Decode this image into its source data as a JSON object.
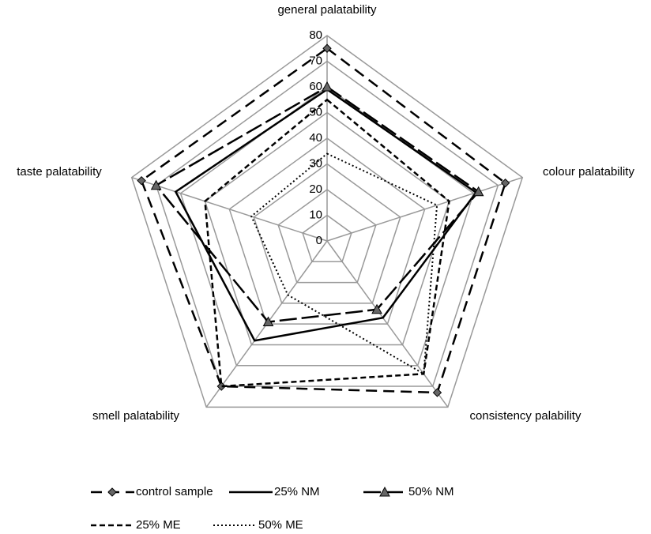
{
  "chart_data": {
    "type": "radar",
    "categories": [
      "general palatability",
      "colour palatability",
      "consistency palability",
      "smell palatability",
      "taste palatability"
    ],
    "ylim": [
      0,
      80
    ],
    "yticks": [
      0,
      10,
      20,
      30,
      40,
      50,
      60,
      70,
      80
    ],
    "grid": true,
    "legend": "bottom",
    "series": [
      {
        "name": "control sample",
        "color": "#000000",
        "dash": "long",
        "marker": "diamond",
        "values": [
          75,
          73,
          73,
          70,
          76
        ]
      },
      {
        "name": "25% NM",
        "color": "#000000",
        "dash": "solid",
        "values": [
          59,
          61,
          37,
          48,
          62
        ]
      },
      {
        "name": "50% NM",
        "color": "#000000",
        "dash": "longdash",
        "marker": "triangle",
        "values": [
          60,
          62,
          33,
          39,
          70
        ]
      },
      {
        "name": "25% ME",
        "color": "#000000",
        "dash": "short",
        "values": [
          55,
          50,
          64,
          70,
          50
        ]
      },
      {
        "name": "50% ME",
        "color": "#000000",
        "dash": "dotted",
        "values": [
          34,
          45,
          64,
          26,
          31
        ]
      }
    ]
  }
}
